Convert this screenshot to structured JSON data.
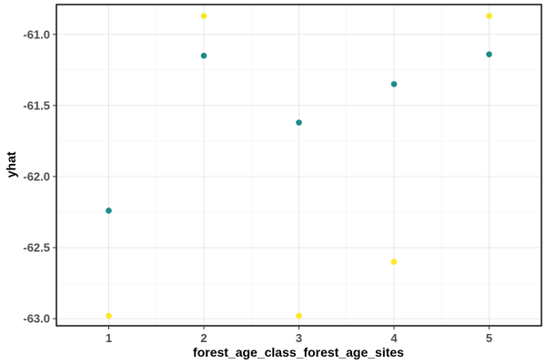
{
  "chart_data": {
    "type": "scatter",
    "xlabel": "forest_age_class_forest_age_sites",
    "ylabel": "yhat",
    "xticks": [
      "1",
      "2",
      "3",
      "4",
      "5"
    ],
    "yticks": [
      "-63.0",
      "-62.5",
      "-62.0",
      "-61.5",
      "-61.0"
    ],
    "xlim": [
      0.45,
      5.55
    ],
    "ylim": [
      -63.05,
      -60.79
    ],
    "grid": true,
    "legend": "none",
    "series": [
      {
        "color": "#1b8a8a",
        "x": [
          1,
          2,
          3,
          4,
          5
        ],
        "y": [
          -62.24,
          -61.15,
          -61.62,
          -61.35,
          -61.14
        ]
      },
      {
        "color": "#fde725",
        "x": [
          1,
          2,
          3,
          4,
          5
        ],
        "y": [
          -62.98,
          -60.87,
          -62.98,
          -62.6,
          -60.87
        ]
      }
    ]
  }
}
